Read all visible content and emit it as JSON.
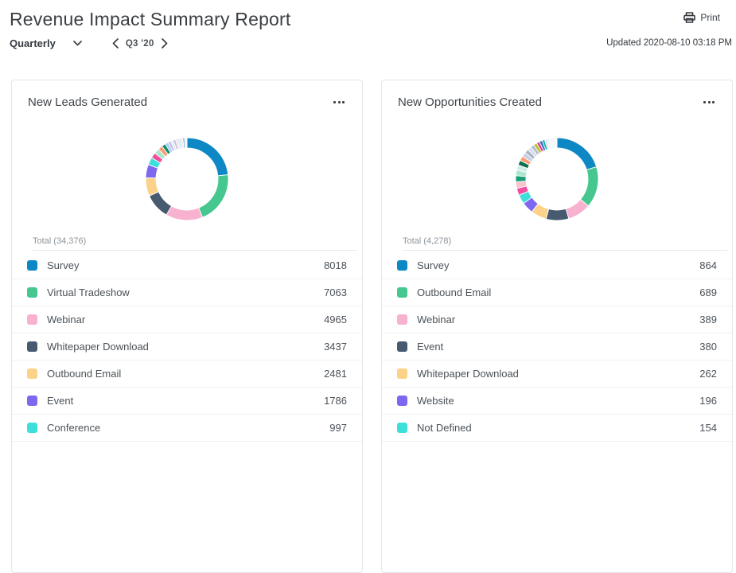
{
  "header": {
    "title": "Revenue Impact Summary Report",
    "period_selector": "Quarterly",
    "period": "Q3 '20",
    "print_label": "Print",
    "updated": "Updated 2020-08-10 03:18 PM"
  },
  "icons": {
    "period_type_caret": "chevron-down-icon",
    "prev": "chevron-left-icon",
    "next": "chevron-right-icon",
    "print": "printer-icon",
    "card_menu": "ellipsis-icon"
  },
  "colors": {
    "accent_blue": "#0e88c5",
    "card_border": "#e2e5e9",
    "row_divider": "#f0f2f4",
    "muted_text": "#8d949b"
  },
  "chart_data": [
    {
      "type": "pie",
      "style": "donut",
      "title": "New Leads Generated",
      "total_label": "Total (34,376)",
      "total": 34376,
      "legend_position": "bottom-list",
      "segments": [
        {
          "label": "Survey",
          "value": 8018,
          "color": "#0e88c5"
        },
        {
          "label": "Virtual Tradeshow",
          "value": 7063,
          "color": "#45c78f"
        },
        {
          "label": "Webinar",
          "value": 4965,
          "color": "#f9b1d0"
        },
        {
          "label": "Whitepaper Download",
          "value": 3437,
          "color": "#475a70"
        },
        {
          "label": "Outbound Email",
          "value": 2481,
          "color": "#fcd289"
        },
        {
          "label": "Event",
          "value": 1786,
          "color": "#7e68f0"
        },
        {
          "label": "Conference",
          "value": 997,
          "color": "#3ddfdb"
        }
      ],
      "others_unlabeled": [
        {
          "value": 760,
          "color": "#f2509e"
        },
        {
          "value": 690,
          "color": "#abe7cd"
        },
        {
          "value": 620,
          "color": "#f89c73"
        },
        {
          "value": 520,
          "color": "#0e8e6c"
        },
        {
          "value": 430,
          "color": "#aacdf2"
        },
        {
          "value": 390,
          "color": "#c4b7f2"
        },
        {
          "value": 350,
          "color": "#e4e9f0"
        },
        {
          "value": 320,
          "color": "#b7c2d2"
        },
        {
          "value": 290,
          "color": "#f3d9e6"
        },
        {
          "value": 260,
          "color": "#d7dde8"
        },
        {
          "value": 240,
          "color": "#c0ddf5"
        },
        {
          "value": 220,
          "color": "#e8ebf1"
        },
        {
          "value": 200,
          "color": "#3b7fd0"
        },
        {
          "value": 339,
          "color": "#f4f6f9"
        }
      ]
    },
    {
      "type": "pie",
      "style": "donut",
      "title": "New Opportunities Created",
      "total_label": "Total (4,278)",
      "total": 4278,
      "legend_position": "bottom-list",
      "segments": [
        {
          "label": "Survey",
          "value": 864,
          "color": "#0e88c5"
        },
        {
          "label": "Outbound Email",
          "value": 689,
          "color": "#45c78f"
        },
        {
          "label": "Webinar",
          "value": 389,
          "color": "#f9b1d0"
        },
        {
          "label": "Event",
          "value": 380,
          "color": "#475a70"
        },
        {
          "label": "Whitepaper Download",
          "value": 262,
          "color": "#fcd289"
        },
        {
          "label": "Website",
          "value": 196,
          "color": "#7e68f0"
        },
        {
          "label": "Not Defined",
          "value": 154,
          "color": "#3ddfdb"
        }
      ],
      "others_unlabeled": [
        {
          "value": 120,
          "color": "#f2509e"
        },
        {
          "value": 110,
          "color": "#f9c2cc"
        },
        {
          "value": 100,
          "color": "#15a077"
        },
        {
          "value": 95,
          "color": "#abe7cd"
        },
        {
          "value": 88,
          "color": "#cdeee6"
        },
        {
          "value": 82,
          "color": "#0b6e4f"
        },
        {
          "value": 78,
          "color": "#f89c73"
        },
        {
          "value": 72,
          "color": "#c7cde4"
        },
        {
          "value": 68,
          "color": "#aab4c8"
        },
        {
          "value": 64,
          "color": "#d8dde9"
        },
        {
          "value": 60,
          "color": "#b3bccd"
        },
        {
          "value": 56,
          "color": "#b8c22f"
        },
        {
          "value": 52,
          "color": "#e5408e"
        },
        {
          "value": 48,
          "color": "#2f6fd0"
        },
        {
          "value": 44,
          "color": "#19b8a6"
        },
        {
          "value": 40,
          "color": "#dfe4ed"
        },
        {
          "value": 37,
          "color": "#ebeef4"
        },
        {
          "value": 130,
          "color": "#f5f7fa"
        }
      ]
    }
  ]
}
